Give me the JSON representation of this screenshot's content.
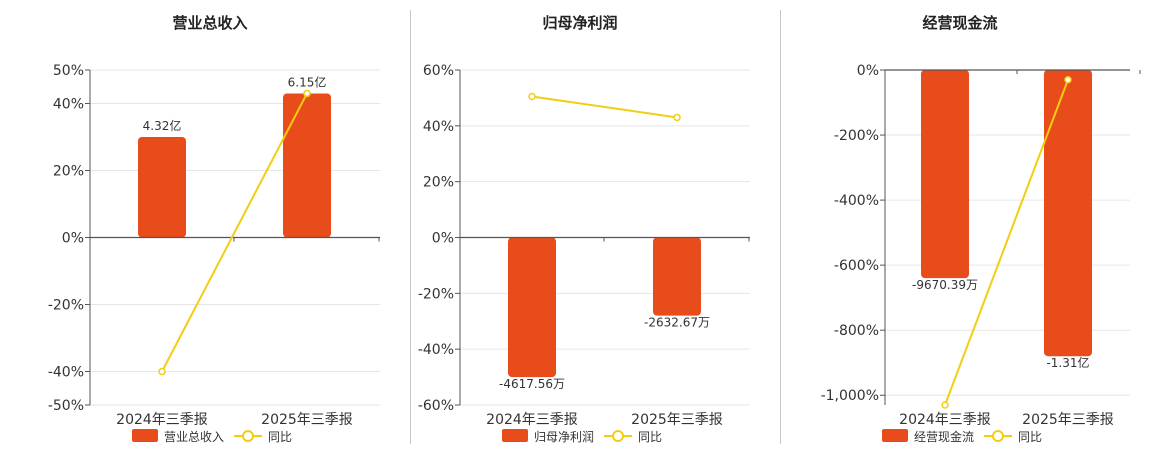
{
  "chart_data": [
    {
      "type": "bar",
      "title": "营业总收入",
      "categories": [
        "2024年三季报",
        "2025年三季报"
      ],
      "series": [
        {
          "name": "营业总收入",
          "kind": "bar",
          "bar_labels": [
            "4.32亿",
            "6.15亿"
          ]
        },
        {
          "name": "同比",
          "kind": "line",
          "values": [
            -40,
            43
          ]
        }
      ],
      "bar_heights_pct": [
        30,
        43
      ],
      "ylim": [
        -50,
        50
      ],
      "yticks": [
        -50,
        -40,
        -20,
        0,
        20,
        40,
        50
      ],
      "ytick_labels": [
        "-50%",
        "-40%",
        "-20%",
        "0%",
        "20%",
        "40%",
        "50%"
      ],
      "legend_position": "bottom",
      "grid": true
    },
    {
      "type": "bar",
      "title": "归母净利润",
      "categories": [
        "2024年三季报",
        "2025年三季报"
      ],
      "series": [
        {
          "name": "归母净利润",
          "kind": "bar",
          "bar_labels": [
            "-4617.56万",
            "-2632.67万"
          ]
        },
        {
          "name": "同比",
          "kind": "line",
          "values": [
            50.5,
            43
          ]
        }
      ],
      "bar_heights_pct": [
        -50,
        -28
      ],
      "ylim": [
        -60,
        60
      ],
      "yticks": [
        -60,
        -40,
        -20,
        0,
        20,
        40,
        60
      ],
      "ytick_labels": [
        "-60%",
        "-40%",
        "-20%",
        "0%",
        "20%",
        "40%",
        "60%"
      ],
      "legend_position": "bottom",
      "grid": true
    },
    {
      "type": "bar",
      "title": "经营现金流",
      "categories": [
        "2024年三季报",
        "2025年三季报"
      ],
      "series": [
        {
          "name": "经营现金流",
          "kind": "bar",
          "bar_labels": [
            "-9670.39万",
            "-1.31亿"
          ]
        },
        {
          "name": "同比",
          "kind": "line",
          "values": [
            -1030,
            -30
          ]
        }
      ],
      "bar_heights_pct": [
        -640,
        -880
      ],
      "ylim": [
        -1030,
        0
      ],
      "yticks": [
        -1000,
        -800,
        -600,
        -400,
        -200,
        0
      ],
      "ytick_labels": [
        "-1,000%",
        "-800%",
        "-600%",
        "-400%",
        "-200%",
        "0%"
      ],
      "legend_position": "bottom",
      "grid": true
    }
  ],
  "colors": {
    "bar": "#e84c1b",
    "line": "#f3cd12",
    "grid": "#e6e6e6",
    "axis": "#555555",
    "text": "#333333",
    "separator": "#c8c8c8"
  }
}
